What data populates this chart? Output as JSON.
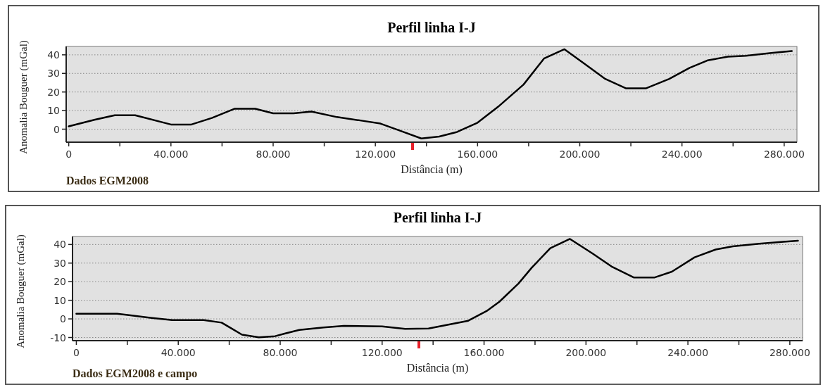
{
  "chart_data": [
    {
      "type": "line",
      "title": "Perfil linha I-J",
      "xlabel": "Distância (m)",
      "ylabel": "Anomalia Bouguer (mGal)",
      "annotations": [
        "Dados EGM2008"
      ],
      "x": [
        0,
        10000,
        18000,
        26000,
        40000,
        48000,
        56000,
        65000,
        73000,
        80000,
        88000,
        95000,
        105000,
        115000,
        122000,
        130000,
        138000,
        145000,
        152000,
        160000,
        168000,
        178000,
        186000,
        194000,
        202000,
        210000,
        218000,
        226000,
        235000,
        243000,
        250000,
        258000,
        265000,
        275000,
        283000
      ],
      "series": [
        {
          "color": "#000000",
          "values": [
            1.5,
            5,
            7.5,
            7.5,
            2.5,
            2.5,
            6,
            11,
            11,
            8.5,
            8.5,
            9.5,
            6.5,
            4.5,
            3,
            -1,
            -5,
            -4,
            -1.5,
            3.5,
            12,
            24,
            38,
            43,
            35,
            27,
            22,
            22,
            27,
            33,
            37,
            39,
            39.5,
            41,
            42
          ]
        }
      ],
      "xlim": [
        -1000,
        285000
      ],
      "ylim": [
        -7,
        44.5
      ],
      "xticks": [
        0,
        {
          "value": 20000,
          "label": null
        },
        {
          "value": 40000,
          "label": "40.000"
        },
        {
          "value": 60000,
          "label": null
        },
        {
          "value": 80000,
          "label": "80.000"
        },
        {
          "value": 100000,
          "label": null
        },
        {
          "value": 120000,
          "label": "120.000"
        },
        {
          "value": 140000,
          "label": null
        },
        {
          "value": 160000,
          "label": "160.000"
        },
        {
          "value": 180000,
          "label": null
        },
        {
          "value": 200000,
          "label": "200.000"
        },
        {
          "value": 220000,
          "label": null
        },
        {
          "value": 240000,
          "label": "240.000"
        },
        {
          "value": 260000,
          "label": null
        },
        {
          "value": 280000,
          "label": "280.000"
        }
      ],
      "yticks": [
        0,
        10,
        20,
        30,
        40
      ],
      "grid": "y",
      "marker": "none",
      "line_style": "solid"
    },
    {
      "type": "line",
      "title": "Perfil linha I-J",
      "xlabel": "Distância (m)",
      "ylabel": "Anomalia Bouguer (mGal)",
      "annotations": [
        "Dados EGM2008 e campo"
      ],
      "x": [
        0,
        16000,
        20700,
        29000,
        37600,
        50000,
        57000,
        61000,
        65000,
        71600,
        78000,
        82000,
        87500,
        97000,
        105000,
        120000,
        129000,
        138200,
        153800,
        161000,
        166000,
        173500,
        178700,
        186000,
        193700,
        202500,
        210000,
        218700,
        227000,
        233700,
        242600,
        250900,
        257600,
        268000,
        277500,
        283200
      ],
      "series": [
        {
          "color": "#000000",
          "values": [
            2.8,
            2.8,
            2,
            0.6,
            -0.6,
            -0.6,
            -2,
            -5.2,
            -8.5,
            -9.9,
            -9.3,
            -7.8,
            -5.9,
            -4.6,
            -3.8,
            -4,
            -5.4,
            -5.2,
            -1,
            4.2,
            9.2,
            19,
            27.5,
            38,
            43,
            35.2,
            28.2,
            22.3,
            22.3,
            25.4,
            33.1,
            37.3,
            39,
            40.4,
            41.5,
            42
          ]
        }
      ],
      "xlim": [
        -1500,
        285000
      ],
      "ylim": [
        -11.7,
        44.3
      ],
      "xticks": [
        0,
        {
          "value": 20000,
          "label": null
        },
        {
          "value": 40000,
          "label": "40.000"
        },
        {
          "value": 60000,
          "label": null
        },
        {
          "value": 80000,
          "label": "80.000"
        },
        {
          "value": 100000,
          "label": null
        },
        {
          "value": 120000,
          "label": "120.000"
        },
        {
          "value": 140000,
          "label": null
        },
        {
          "value": 160000,
          "label": "160.000"
        },
        {
          "value": 180000,
          "label": null
        },
        {
          "value": 200000,
          "label": "200.000"
        },
        {
          "value": 220000,
          "label": null
        },
        {
          "value": 240000,
          "label": "240.000"
        },
        {
          "value": 260000,
          "label": null
        },
        {
          "value": 280000,
          "label": "280.000"
        }
      ],
      "yticks": [
        -10,
        0,
        10,
        20,
        30,
        40
      ],
      "grid": "y",
      "marker": "none",
      "line_style": "solid"
    }
  ]
}
